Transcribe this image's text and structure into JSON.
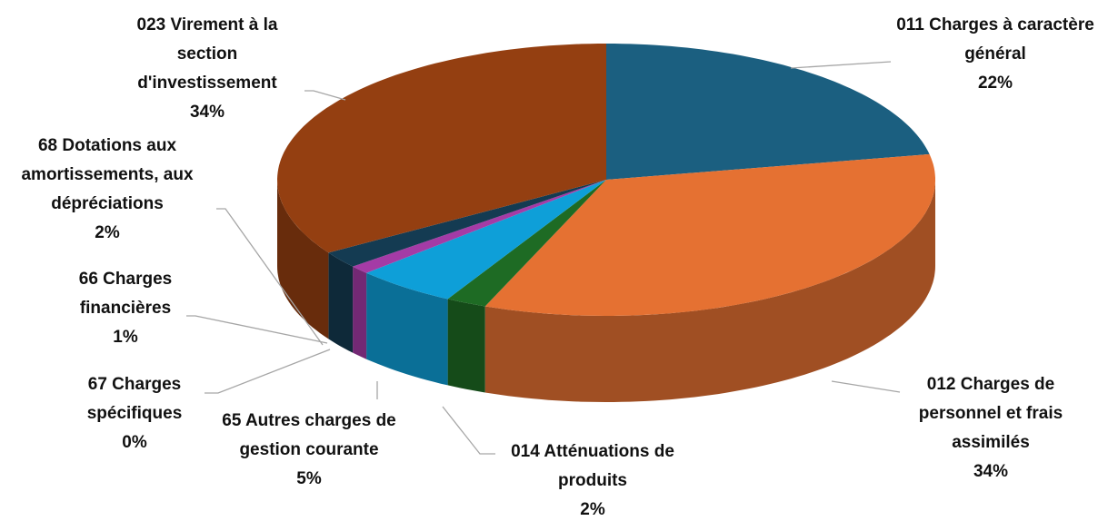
{
  "chart_data": {
    "type": "pie",
    "categories": [
      "011 Charges à caractère général",
      "012 Charges de personnel et frais assimilés",
      "014 Atténuations de produits",
      "65 Autres charges de gestion courante",
      "67 Charges spécifiques",
      "66 Charges financières",
      "68 Dotations aux amortissements, aux dépréciations",
      "023 Virement à la section d'investissement"
    ],
    "values": [
      22,
      34,
      2,
      5,
      0,
      1,
      2,
      34
    ],
    "value_labels": [
      "22%",
      "34%",
      "2%",
      "5%",
      "0%",
      "1%",
      "2%",
      "34%"
    ],
    "colors": [
      "#1b5f80",
      "#e57132",
      "#1e6b24",
      "#0e9fd8",
      "#6b8fbf",
      "#a43ba6",
      "#143b52",
      "#943f11"
    ]
  }
}
